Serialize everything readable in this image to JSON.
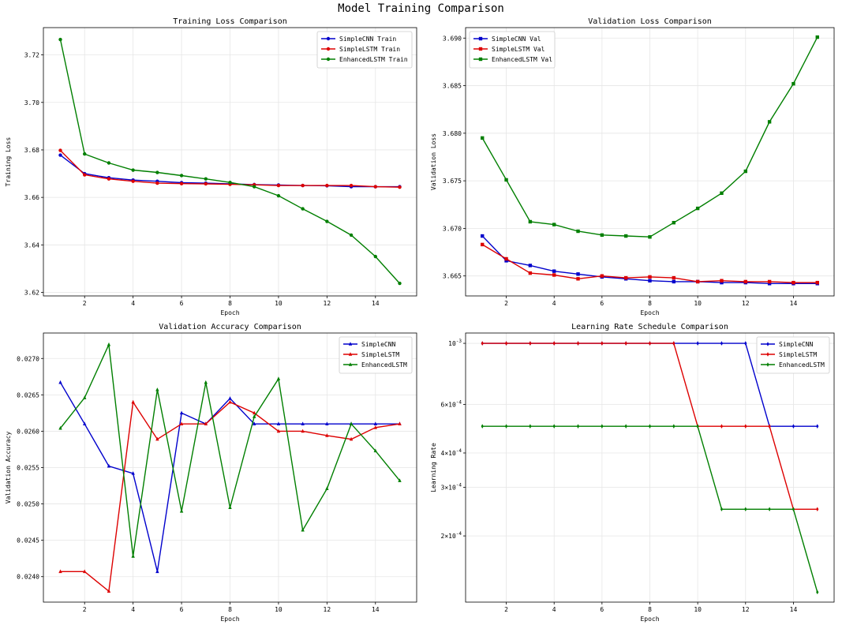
{
  "title": "Model Training Comparison",
  "colors": {
    "SimpleCNN": "#0000cc",
    "SimpleLSTM": "#dd0000",
    "EnhancedLSTM": "#007f00"
  },
  "chart_data": [
    {
      "type": "line",
      "title": "Training Loss Comparison",
      "xlabel": "Epoch",
      "ylabel": "Training Loss",
      "x": [
        1,
        2,
        3,
        4,
        5,
        6,
        7,
        8,
        9,
        10,
        11,
        12,
        13,
        14,
        15
      ],
      "xticks": [
        2,
        4,
        6,
        8,
        10,
        12,
        14
      ],
      "xlim": [
        0.3,
        15.7
      ],
      "ylim": [
        3.6185,
        3.7315
      ],
      "yticks": [
        3.62,
        3.64,
        3.66,
        3.68,
        3.7,
        3.72
      ],
      "yscale": "linear",
      "grid": true,
      "legend_position": "top-right",
      "marker": "circle",
      "series": [
        {
          "name": "SimpleCNN Train",
          "color": "#0000cc",
          "values": [
            3.6778,
            3.67,
            3.6683,
            3.6673,
            3.6668,
            3.6662,
            3.666,
            3.6657,
            3.6654,
            3.6652,
            3.665,
            3.6649,
            3.6645,
            3.6645,
            3.6645
          ]
        },
        {
          "name": "SimpleLSTM Train",
          "color": "#dd0000",
          "values": [
            3.6798,
            3.6695,
            3.6678,
            3.6668,
            3.666,
            3.6658,
            3.6657,
            3.6655,
            3.6653,
            3.665,
            3.665,
            3.665,
            3.665,
            3.6645,
            3.6643
          ]
        },
        {
          "name": "EnhancedLSTM Train",
          "color": "#007f00",
          "values": [
            3.7265,
            3.6783,
            3.6745,
            3.6715,
            3.6705,
            3.6692,
            3.6678,
            3.6663,
            3.6645,
            3.6607,
            3.6552,
            3.6499,
            3.6441,
            3.6351,
            3.6238
          ]
        }
      ]
    },
    {
      "type": "line",
      "title": "Validation Loss Comparison",
      "xlabel": "Epoch",
      "ylabel": "Validation Loss",
      "x": [
        1,
        2,
        3,
        4,
        5,
        6,
        7,
        8,
        9,
        10,
        11,
        12,
        13,
        14,
        15
      ],
      "xticks": [
        2,
        4,
        6,
        8,
        10,
        12,
        14
      ],
      "xlim": [
        0.3,
        15.7
      ],
      "ylim": [
        3.6629,
        3.6911
      ],
      "yticks": [
        3.665,
        3.67,
        3.675,
        3.68,
        3.685,
        3.69
      ],
      "yscale": "linear",
      "grid": true,
      "legend_position": "top-left",
      "marker": "square",
      "series": [
        {
          "name": "SimpleCNN Val",
          "color": "#0000cc",
          "values": [
            3.6692,
            3.6666,
            3.6661,
            3.6655,
            3.6652,
            3.6649,
            3.6647,
            3.6645,
            3.6644,
            3.6644,
            3.6643,
            3.6643,
            3.6642,
            3.6642,
            3.6642
          ]
        },
        {
          "name": "SimpleLSTM Val",
          "color": "#dd0000",
          "values": [
            3.6683,
            3.6668,
            3.6653,
            3.6651,
            3.6647,
            3.665,
            3.6648,
            3.6649,
            3.6648,
            3.6644,
            3.6645,
            3.6644,
            3.6644,
            3.6643,
            3.6643
          ]
        },
        {
          "name": "EnhancedLSTM Val",
          "color": "#007f00",
          "values": [
            3.6795,
            3.6751,
            3.6707,
            3.6704,
            3.6697,
            3.6693,
            3.6692,
            3.6691,
            3.6706,
            3.6721,
            3.6737,
            3.676,
            3.6812,
            3.6852,
            3.6901
          ]
        }
      ]
    },
    {
      "type": "line",
      "title": "Validation Accuracy Comparison",
      "xlabel": "Epoch",
      "ylabel": "Validation Accuracy",
      "x": [
        1,
        2,
        3,
        4,
        5,
        6,
        7,
        8,
        9,
        10,
        11,
        12,
        13,
        14,
        15
      ],
      "xticks": [
        2,
        4,
        6,
        8,
        10,
        12,
        14
      ],
      "xlim": [
        0.3,
        15.7
      ],
      "ylim": [
        0.02365,
        0.02735
      ],
      "yticks": [
        0.024,
        0.0245,
        0.025,
        0.0255,
        0.026,
        0.0265,
        0.027
      ],
      "yscale": "linear",
      "grid": true,
      "legend_position": "top-right",
      "marker": "triangle",
      "series": [
        {
          "name": "SimpleCNN",
          "color": "#0000cc",
          "values": [
            0.02667,
            0.0261,
            0.02552,
            0.02542,
            0.02407,
            0.02625,
            0.0261,
            0.02645,
            0.0261,
            0.0261,
            0.0261,
            0.0261,
            0.0261,
            0.0261,
            0.0261
          ]
        },
        {
          "name": "SimpleLSTM",
          "color": "#dd0000",
          "values": [
            0.02407,
            0.02407,
            0.0238,
            0.0264,
            0.02589,
            0.0261,
            0.0261,
            0.0264,
            0.02625,
            0.026,
            0.026,
            0.02594,
            0.02589,
            0.02605,
            0.0261
          ]
        },
        {
          "name": "EnhancedLSTM",
          "color": "#007f00",
          "values": [
            0.02604,
            0.02646,
            0.02719,
            0.02428,
            0.02657,
            0.0249,
            0.02667,
            0.02495,
            0.0262,
            0.02672,
            0.02464,
            0.02521,
            0.0261,
            0.02573,
            0.02532
          ]
        }
      ]
    },
    {
      "type": "line",
      "title": "Learning Rate Schedule Comparison",
      "xlabel": "Epoch",
      "ylabel": "Learning Rate",
      "x": [
        1,
        2,
        3,
        4,
        5,
        6,
        7,
        8,
        9,
        10,
        11,
        12,
        13,
        14,
        15
      ],
      "xticks": [
        2,
        4,
        6,
        8,
        10,
        12,
        14
      ],
      "xlim": [
        0.3,
        15.7
      ],
      "ylim": [
        0.000115,
        0.00109
      ],
      "yscale": "log",
      "yticks": [
        0.001,
        0.0006,
        0.0004,
        0.0003,
        0.0002
      ],
      "ytick_labels": [
        "10^-3",
        "6×10^-4",
        "4×10^-4",
        "3×10^-4",
        "2×10^-4"
      ],
      "grid": true,
      "legend_position": "top-right",
      "marker": "diamond",
      "series": [
        {
          "name": "SimpleCNN",
          "color": "#0000cc",
          "values": [
            0.001,
            0.001,
            0.001,
            0.001,
            0.001,
            0.001,
            0.001,
            0.001,
            0.001,
            0.001,
            0.001,
            0.001,
            0.0005,
            0.0005,
            0.0005
          ]
        },
        {
          "name": "SimpleLSTM",
          "color": "#dd0000",
          "values": [
            0.001,
            0.001,
            0.001,
            0.001,
            0.001,
            0.001,
            0.001,
            0.001,
            0.001,
            0.0005,
            0.0005,
            0.0005,
            0.0005,
            0.00025,
            0.00025
          ]
        },
        {
          "name": "EnhancedLSTM",
          "color": "#007f00",
          "values": [
            0.0005,
            0.0005,
            0.0005,
            0.0005,
            0.0005,
            0.0005,
            0.0005,
            0.0005,
            0.0005,
            0.0005,
            0.00025,
            0.00025,
            0.00025,
            0.00025,
            0.000125
          ]
        }
      ]
    }
  ]
}
